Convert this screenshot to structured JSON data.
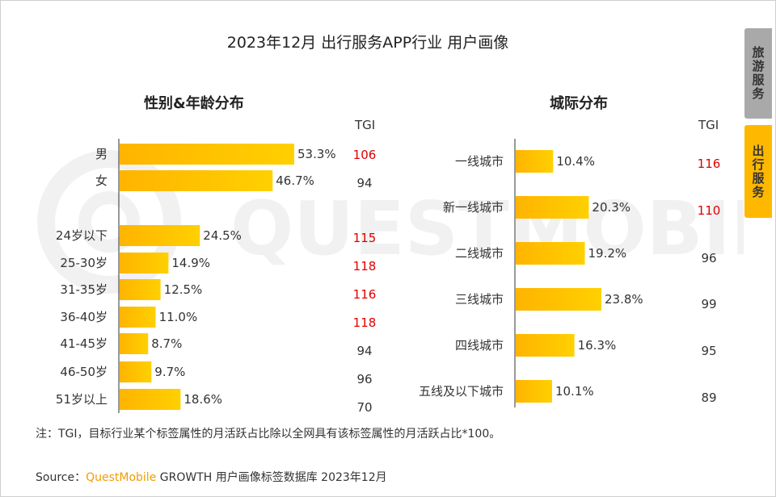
{
  "title": "2023年12月 出行服务APP行业 用户画像",
  "tabs": [
    {
      "label": "旅游服务",
      "active": false
    },
    {
      "label": "出行服务",
      "active": true
    }
  ],
  "watermark": "QUESTMOBILE",
  "colors": {
    "bar_start": "#ffb400",
    "bar_end": "#ffd000",
    "tgi_high": "#e00000",
    "tgi_normal": "#333333"
  },
  "chart_data": [
    {
      "type": "bar",
      "orientation": "horizontal",
      "title": "性别&年龄分布",
      "tgi_header": "TGI",
      "gender": {
        "categories": [
          "男",
          "女"
        ],
        "values": [
          53.3,
          46.7
        ],
        "labels": [
          "53.3%",
          "46.7%"
        ],
        "tgi": [
          106,
          94
        ]
      },
      "age": {
        "categories": [
          "24岁以下",
          "25-30岁",
          "31-35岁",
          "36-40岁",
          "41-45岁",
          "46-50岁",
          "51岁以上"
        ],
        "values": [
          24.5,
          14.9,
          12.5,
          11.0,
          8.7,
          9.7,
          18.6
        ],
        "labels": [
          "24.5%",
          "14.9%",
          "12.5%",
          "11.0%",
          "8.7%",
          "9.7%",
          "18.6%"
        ],
        "tgi": [
          115,
          118,
          116,
          118,
          94,
          96,
          70
        ]
      }
    },
    {
      "type": "bar",
      "orientation": "horizontal",
      "title": "城际分布",
      "tgi_header": "TGI",
      "categories": [
        "一线城市",
        "新一线城市",
        "二线城市",
        "三线城市",
        "四线城市",
        "五线及以下城市"
      ],
      "values": [
        10.4,
        20.3,
        19.2,
        23.8,
        16.3,
        10.1
      ],
      "labels": [
        "10.4%",
        "20.3%",
        "19.2%",
        "23.8%",
        "16.3%",
        "10.1%"
      ],
      "tgi": [
        116,
        110,
        96,
        99,
        95,
        89
      ]
    }
  ],
  "note": "注：TGI，目标行业某个标签属性的月活跃占比除以全网具有该标签属性的月活跃占比*100。",
  "source": {
    "prefix": "Source：",
    "brand": "QuestMobile",
    "suffix": " GROWTH 用户画像标签数据库 2023年12月"
  }
}
